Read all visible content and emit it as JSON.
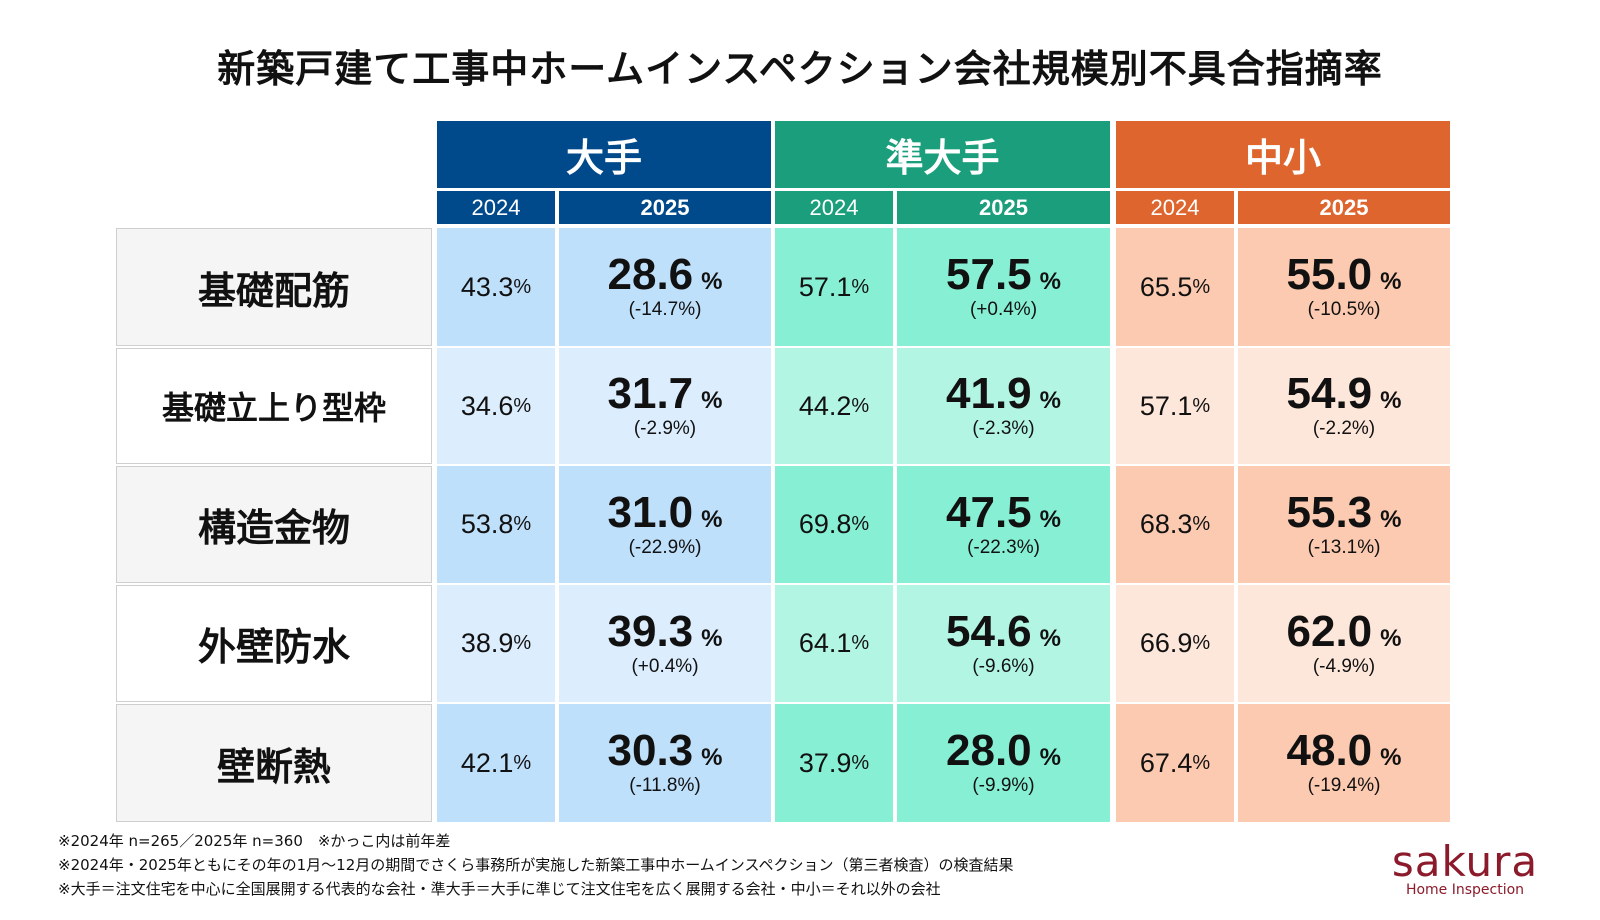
{
  "chart_data": {
    "type": "table",
    "title": "新築戸建て工事中ホームインスペクション会社規模別不具合指摘率",
    "groups": [
      {
        "name": "大手",
        "color": "#004a8c",
        "cell_colors": [
          "#bfe0fb",
          "#dcedfd"
        ]
      },
      {
        "name": "準大手",
        "color": "#1a9e7c",
        "cell_colors": [
          "#87f0d4",
          "#b2f5e3"
        ]
      },
      {
        "name": "中小",
        "color": "#de652d",
        "cell_colors": [
          "#fccab0",
          "#fde6da"
        ]
      }
    ],
    "years": [
      "2024",
      "2025"
    ],
    "unit": "%",
    "categories": [
      "基礎配筋",
      "基礎立上り型枠",
      "構造金物",
      "外壁防水",
      "壁断熱"
    ],
    "rows": [
      {
        "values": [
          [
            "43.3",
            "28.6",
            "(-14.7%)"
          ],
          [
            "57.1",
            "57.5",
            "(+0.4%)"
          ],
          [
            "65.5",
            "55.0",
            "(-10.5%)"
          ]
        ]
      },
      {
        "values": [
          [
            "34.6",
            "31.7",
            "(-2.9%)"
          ],
          [
            "44.2",
            "41.9",
            "(-2.3%)"
          ],
          [
            "57.1",
            "54.9",
            "(-2.2%)"
          ]
        ]
      },
      {
        "values": [
          [
            "53.8",
            "31.0",
            "(-22.9%)"
          ],
          [
            "69.8",
            "47.5",
            "(-22.3%)"
          ],
          [
            "68.3",
            "55.3",
            "(-13.1%)"
          ]
        ]
      },
      {
        "values": [
          [
            "38.9",
            "39.3",
            "(+0.4%)"
          ],
          [
            "64.1",
            "54.6",
            "(-9.6%)"
          ],
          [
            "66.9",
            "62.0",
            "(-4.9%)"
          ]
        ]
      },
      {
        "values": [
          [
            "42.1",
            "30.3",
            "(-11.8%)"
          ],
          [
            "37.9",
            "28.0",
            "(-9.9%)"
          ],
          [
            "67.4",
            "48.0",
            "(-19.4%)"
          ]
        ]
      }
    ]
  },
  "notes": [
    "※2024年 n=265／2025年 n=360　※かっこ内は前年差",
    "※2024年・2025年ともにその年の1月～12月の期間でさくら事務所が実施した新築工事中ホームインスペクション（第三者検査）の検査結果",
    "※大手＝注文住宅を中心に全国展開する代表的な会社・準大手＝大手に準じて注文住宅を広く展開する会社・中小＝それ以外の会社"
  ],
  "logo": {
    "word": "sakura",
    "sub": "Home Inspection",
    "color": "#8b1a2b"
  }
}
